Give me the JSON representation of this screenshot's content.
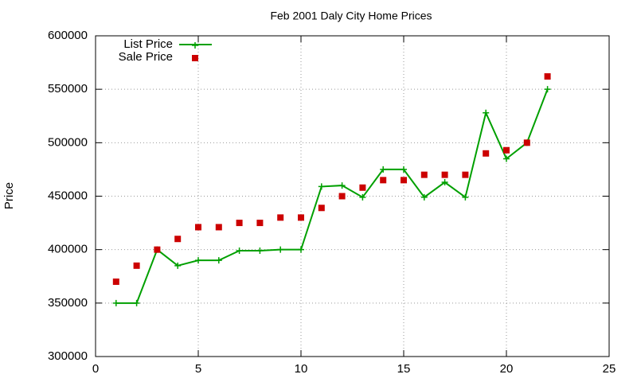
{
  "chart_data": {
    "type": "line",
    "title": "Feb 2001 Daly City Home Prices",
    "y_label": "Price",
    "x": [
      1,
      2,
      3,
      4,
      5,
      6,
      7,
      8,
      9,
      10,
      11,
      12,
      13,
      14,
      15,
      16,
      17,
      18,
      19,
      20,
      21,
      22
    ],
    "series": [
      {
        "name": "List Price",
        "color": "#00a000",
        "line": true,
        "marker": "plus",
        "values": [
          350000,
          350000,
          400000,
          385000,
          390000,
          390000,
          399000,
          399000,
          400000,
          400000,
          459000,
          460000,
          449000,
          475000,
          475000,
          449000,
          463000,
          449000,
          528000,
          485000,
          500000,
          550000
        ]
      },
      {
        "name": "Sale Price",
        "color": "#cc0000",
        "line": false,
        "marker": "square",
        "values": [
          370000,
          385000,
          400000,
          410000,
          421000,
          421000,
          425000,
          425000,
          430000,
          430000,
          439000,
          450000,
          458000,
          465000,
          465000,
          470000,
          470000,
          470000,
          490000,
          493000,
          500000,
          562000
        ]
      }
    ],
    "xlim": [
      0,
      25
    ],
    "xticks": [
      0,
      5,
      10,
      15,
      20,
      25
    ],
    "ylim": [
      300000,
      600000
    ],
    "yticks": [
      300000,
      350000,
      400000,
      450000,
      500000,
      550000,
      600000
    ],
    "grid": true,
    "legend": "top-left"
  }
}
